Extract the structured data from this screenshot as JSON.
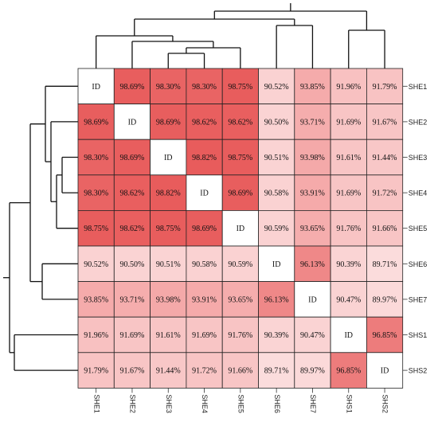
{
  "chart_data": {
    "type": "heatmap",
    "rows": [
      "SHE1",
      "SHE2",
      "SHE3",
      "SHE4",
      "SHE5",
      "SHE6",
      "SHE7",
      "SHS1",
      "SHS2"
    ],
    "columns": [
      "SHE1",
      "SHE2",
      "SHE3",
      "SHE4",
      "SHE5",
      "SHE6",
      "SHE7",
      "SHS1",
      "SHS2"
    ],
    "diagonal_label": "ID",
    "values": [
      [
        null,
        98.69,
        98.3,
        98.3,
        98.75,
        90.52,
        93.85,
        91.96,
        91.79
      ],
      [
        98.69,
        null,
        98.69,
        98.62,
        98.62,
        90.5,
        93.71,
        91.69,
        91.67
      ],
      [
        98.3,
        98.69,
        null,
        98.82,
        98.75,
        90.51,
        93.98,
        91.61,
        91.44
      ],
      [
        98.3,
        98.62,
        98.82,
        null,
        98.69,
        90.58,
        93.91,
        91.69,
        91.72
      ],
      [
        98.75,
        98.62,
        98.75,
        98.69,
        null,
        90.59,
        93.65,
        91.76,
        91.66
      ],
      [
        90.52,
        90.5,
        90.51,
        90.58,
        90.59,
        null,
        96.13,
        90.39,
        89.71
      ],
      [
        93.85,
        93.71,
        93.98,
        93.91,
        93.65,
        96.13,
        null,
        90.47,
        89.97
      ],
      [
        91.96,
        91.69,
        91.61,
        91.69,
        91.76,
        90.39,
        90.47,
        null,
        96.85
      ],
      [
        91.79,
        91.67,
        91.44,
        91.72,
        91.66,
        89.71,
        89.97,
        96.85,
        null
      ]
    ],
    "value_suffix": "%",
    "color_scale": {
      "low": "#fbdcdc",
      "mid": "#f4a6a6",
      "high": "#e85c5c",
      "min": 89.71,
      "max": 98.82
    },
    "dendrogram": "top and left"
  }
}
